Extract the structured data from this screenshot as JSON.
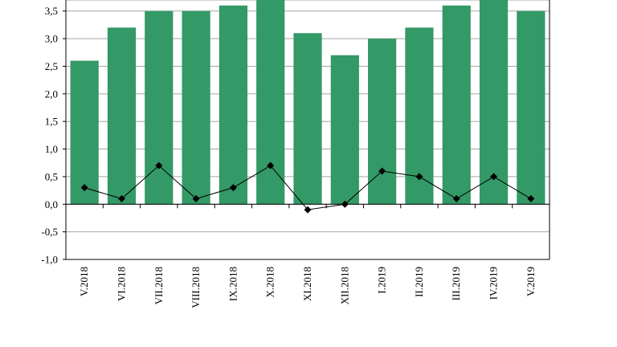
{
  "chart_data": {
    "type": "bar",
    "title": "",
    "xlabel": "",
    "ylabel": "",
    "categories": [
      "V.2018",
      "VI.2018",
      "VII.2018",
      "VIII.2018",
      "IX.2018",
      "X.2018",
      "XI.2018",
      "XII.2018",
      "I.2019",
      "II.2019",
      "III.2019",
      "IV.2019",
      "V.2019"
    ],
    "series": [
      {
        "type": "bar",
        "color": "#339966",
        "values": [
          2.6,
          3.2,
          3.5,
          3.5,
          3.6,
          3.7,
          3.1,
          2.7,
          3.0,
          3.2,
          3.6,
          3.7,
          3.5
        ]
      },
      {
        "type": "line",
        "color": "#000000",
        "marker": "diamond",
        "values": [
          0.3,
          0.1,
          0.7,
          0.1,
          0.3,
          0.7,
          -0.1,
          0.0,
          0.6,
          0.5,
          0.1,
          0.5,
          0.1
        ]
      }
    ],
    "ylim": [
      -1.0,
      3.7
    ],
    "yticks": [
      "-1,0",
      "-0,5",
      "0,0",
      "0,5",
      "1,0",
      "1,5",
      "2,0",
      "2,5",
      "3,0",
      "3,5"
    ],
    "ytick_values": [
      -1.0,
      -0.5,
      0.0,
      0.5,
      1.0,
      1.5,
      2.0,
      2.5,
      3.0,
      3.5
    ],
    "grid": true,
    "legend": "none"
  }
}
